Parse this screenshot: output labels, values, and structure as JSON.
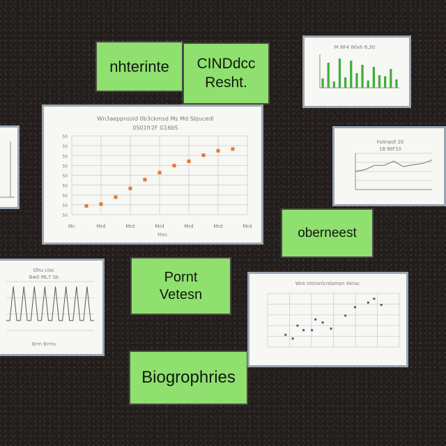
{
  "notes": {
    "top_left": "nhterinte",
    "top_right_line1": "CINDdcc",
    "top_right_line2": "Resht.",
    "right_mid": "oberneest",
    "center_line1": "Pornt",
    "center_line2": "Vetesn",
    "bottom": "Biogrophries"
  },
  "colors": {
    "note_bg": "#8fe06e",
    "board_bg": "#231e1b",
    "marker_orange": "#e07a35",
    "bar_green": "#3fae3a",
    "scatter_blue": "#4a5e8a"
  },
  "main_chart": {
    "title_line1": "Wn3aeppnssld 0b3ckmsd Ms Md Sbjucedl",
    "title_line2": "0S01fr2F G16bS",
    "y_ticks": [
      "50",
      "50",
      "50",
      "50",
      "50",
      "50",
      "50",
      "50",
      "50"
    ],
    "x_ticks": [
      "Mc",
      "Mrd",
      "Mrd",
      "Mrd",
      "Mrd",
      "Mrd",
      "Mrd"
    ],
    "x_label": "Mas"
  },
  "bar_chart": {
    "title": "M 8F4 Wlxh 6,30"
  },
  "line_chart": {
    "title_line1": "Faltnpdl 20",
    "title_line2": "1B BtF10"
  },
  "spike_chart": {
    "title_line1": "Dhu clac",
    "title_line2": "Bw0 ML7 Sb",
    "x_label": "Brm Brms"
  },
  "scatter_chart": {
    "title": "Wnt mtnsnlcrdamsn Xerac"
  },
  "chart_data": [
    {
      "type": "scatter",
      "x": [
        1,
        2,
        3,
        4,
        5,
        6,
        7,
        8,
        9,
        10,
        11
      ],
      "y": [
        1,
        1.2,
        2,
        3,
        4,
        4.8,
        5.6,
        6.1,
        6.8,
        7.3,
        7.5
      ],
      "xlim": [
        0,
        12
      ],
      "ylim": [
        0,
        9
      ]
    },
    {
      "type": "bar",
      "values": [
        9,
        24,
        6,
        28,
        10,
        26,
        14,
        22,
        7,
        20,
        12,
        11,
        18,
        8
      ],
      "ylim": [
        0,
        32
      ]
    },
    {
      "type": "line",
      "x": [
        0,
        1,
        2,
        3,
        4,
        5,
        6,
        7,
        8
      ],
      "y": [
        3.0,
        3.3,
        4.0,
        4.0,
        4.7,
        3.8,
        4.1,
        4.3,
        4.9
      ],
      "ylim": [
        0,
        6
      ]
    },
    {
      "type": "line",
      "values": [
        2,
        2,
        9,
        2,
        2,
        9,
        2,
        2,
        9,
        2,
        2,
        9,
        2,
        2,
        9,
        2,
        2,
        9,
        2,
        2,
        9,
        2,
        2,
        9,
        2,
        2
      ],
      "ylim": [
        0,
        10
      ]
    },
    {
      "type": "scatter",
      "x": [
        1.5,
        2.5,
        3,
        4,
        4.6,
        5.3,
        6.5,
        7.3,
        8.4,
        9.5,
        2.1,
        3.7,
        8.9
      ],
      "y": [
        1.6,
        2.8,
        2.2,
        3.6,
        3.2,
        2.4,
        4.1,
        5.2,
        5.8,
        5.5,
        1.1,
        2.2,
        6.3
      ],
      "xlim": [
        0,
        11
      ],
      "ylim": [
        0,
        7
      ]
    }
  ]
}
